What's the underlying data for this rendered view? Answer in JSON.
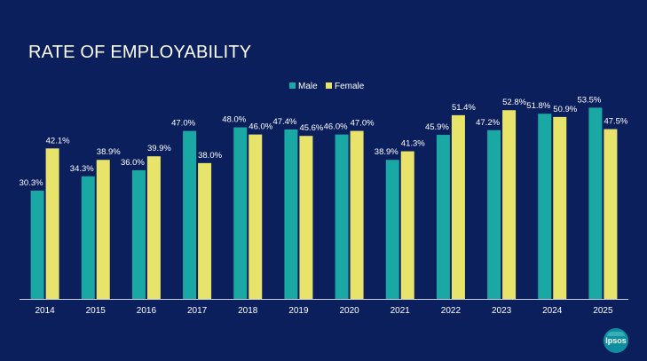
{
  "colors": {
    "background": "#0b1f5c",
    "male": "#1aa8a5",
    "female": "#e8e36a",
    "text": "#ffffff",
    "axis": "#c9cfe0"
  },
  "logo": {
    "text": "Ipsos"
  },
  "chart_data": {
    "type": "bar",
    "title": "RATE OF EMPLOYABILITY",
    "xlabel": "",
    "ylabel": "",
    "ylim": [
      0,
      60
    ],
    "grid": false,
    "legend": "top-center",
    "categories": [
      "2014",
      "2015",
      "2016",
      "2017",
      "2018",
      "2019",
      "2020",
      "2021",
      "2022",
      "2023",
      "2024",
      "2025"
    ],
    "series": [
      {
        "name": "Male",
        "values": [
          30.3,
          34.3,
          36.0,
          47.0,
          48.0,
          47.4,
          46.0,
          38.9,
          45.9,
          47.2,
          51.8,
          53.5
        ],
        "labels": [
          "30.3%",
          "34.3%",
          "36.0%",
          "47.0%",
          "48.0%",
          "47.4%",
          "46.0%",
          "38.9%",
          "45.9%",
          "47.2%",
          "51.8%",
          "53.5%"
        ]
      },
      {
        "name": "Female",
        "values": [
          42.1,
          38.9,
          39.9,
          38.0,
          46.0,
          45.6,
          47.0,
          41.3,
          51.4,
          52.8,
          50.9,
          47.5
        ],
        "labels": [
          "42.1%",
          "38.9%",
          "39.9%",
          "38.0%",
          "46.0%",
          "45.6%",
          "47.0%",
          "41.3%",
          "51.4%",
          "52.8%",
          "50.9%",
          "47.5%"
        ]
      }
    ]
  }
}
